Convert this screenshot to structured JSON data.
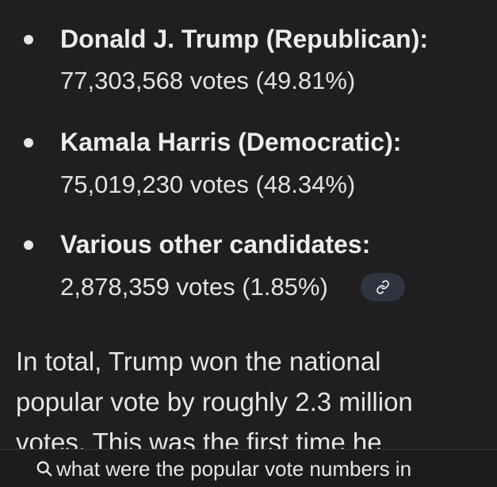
{
  "results": [
    {
      "name": "Donald J. Trump (Republican):",
      "votes": "77,303,568 votes (49.81%)"
    },
    {
      "name": "Kamala Harris (Democratic):",
      "votes": "75,019,230 votes (48.34%)"
    },
    {
      "name": "Various other candidates:",
      "votes": "2,878,359 votes (1.85%)"
    }
  ],
  "source_chip": {
    "icon": "link-icon"
  },
  "summary": {
    "line1": "In total, Trump won the national",
    "line2": "popular vote by roughly 2.3 million",
    "line3": "votes. This was the first time he"
  },
  "search": {
    "icon": "search-icon",
    "query": "what were the popular vote numbers in"
  },
  "colors": {
    "background": "#1f1f21",
    "text": "#e6e6e8",
    "chip_background": "#2e3440",
    "search_bar_background": "#1c1c1e"
  }
}
